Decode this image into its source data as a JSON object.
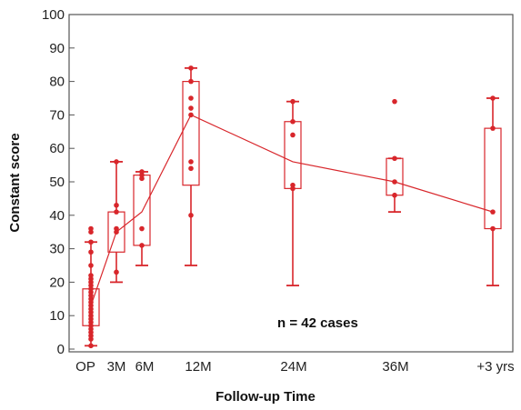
{
  "chart_data": {
    "type": "box",
    "title": "",
    "xlabel": "Follow-up Time",
    "ylabel": "Constant score",
    "ylim": [
      0,
      100
    ],
    "yticks": [
      0,
      10,
      20,
      30,
      40,
      50,
      60,
      70,
      80,
      90,
      100
    ],
    "grid": false,
    "color": "#d8262b",
    "categories": [
      "OP",
      "3M",
      "6M",
      "12M",
      "24M",
      "36M",
      "+3 yrs"
    ],
    "boxes": [
      {
        "category": "OP",
        "min": 1,
        "q1": 7,
        "median": 13,
        "q3": 18,
        "max": 32,
        "points": [
          36,
          35,
          32,
          29,
          25,
          22,
          21,
          20,
          19,
          18,
          17,
          16,
          15,
          14,
          13,
          12,
          11,
          10,
          9,
          8,
          7,
          6,
          5,
          4,
          3,
          1
        ]
      },
      {
        "category": "3M",
        "min": 20,
        "q1": 29,
        "median": 35,
        "q3": 41,
        "max": 56,
        "points": [
          56,
          43,
          41,
          36,
          35,
          23
        ]
      },
      {
        "category": "6M",
        "min": 25,
        "q1": 31,
        "median": 41,
        "q3": 52,
        "max": 53,
        "points": [
          53,
          52,
          51,
          36,
          31
        ]
      },
      {
        "category": "12M",
        "min": 25,
        "q1": 49,
        "median": 70,
        "q3": 80,
        "max": 84,
        "points": [
          84,
          80,
          75,
          72,
          70,
          56,
          54,
          40
        ]
      },
      {
        "category": "24M",
        "min": 19,
        "q1": 48,
        "median": 56,
        "q3": 68,
        "max": 74,
        "points": [
          74,
          68,
          64,
          49,
          48
        ]
      },
      {
        "category": "36M",
        "min": 41,
        "q1": 46,
        "median": 50,
        "q3": 57,
        "max": 57,
        "points": [
          74,
          57,
          50,
          46
        ]
      },
      {
        "category": "+3 yrs",
        "min": 19,
        "q1": 36,
        "median": 41,
        "q3": 66,
        "max": 75,
        "points": [
          75,
          66,
          41,
          36
        ]
      }
    ],
    "annotation": "n = 42 cases"
  }
}
